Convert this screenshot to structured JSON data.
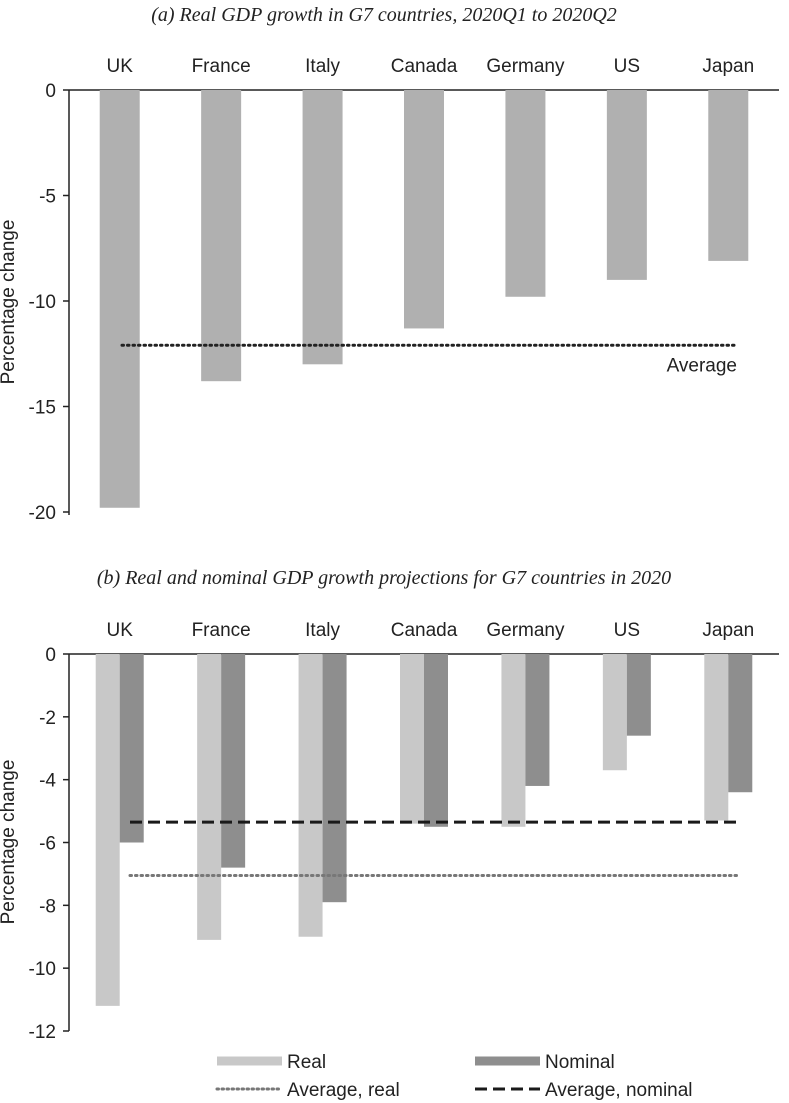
{
  "chart_data": [
    {
      "panel": "a",
      "type": "bar",
      "title": "(a) Real GDP growth in G7 countries, 2020Q1 to 2020Q2",
      "ylabel": "Percentage change",
      "ylim": [
        -20,
        0
      ],
      "yticks": [
        0,
        -5,
        -10,
        -15,
        -20
      ],
      "categories": [
        "UK",
        "France",
        "Italy",
        "Canada",
        "Germany",
        "US",
        "Japan"
      ],
      "series": [
        {
          "values": [
            -19.8,
            -13.8,
            -13.0,
            -11.3,
            -9.8,
            -9.0,
            -8.1
          ],
          "color": "#b0b0b0"
        }
      ],
      "reference_lines": [
        {
          "label": "Average",
          "value": -12.1,
          "style": "dotted",
          "color": "#222222"
        }
      ],
      "grid": false
    },
    {
      "panel": "b",
      "type": "bar",
      "title": "(b) Real and nominal GDP growth projections for G7 countries in 2020",
      "ylabel": "Percentage change",
      "ylim": [
        -12,
        0
      ],
      "yticks": [
        0,
        -2,
        -4,
        -6,
        -8,
        -10,
        -12
      ],
      "categories": [
        "UK",
        "France",
        "Italy",
        "Canada",
        "Germany",
        "US",
        "Japan"
      ],
      "series": [
        {
          "name": "Real",
          "values": [
            -11.2,
            -9.1,
            -9.0,
            -5.4,
            -5.5,
            -3.7,
            -5.3
          ],
          "color": "#c8c8c8"
        },
        {
          "name": "Nominal",
          "values": [
            -6.0,
            -6.8,
            -7.9,
            -5.5,
            -4.2,
            -2.6,
            -4.4
          ],
          "color": "#8e8e8e"
        }
      ],
      "reference_lines": [
        {
          "label": "Average, real",
          "value": -7.05,
          "style": "dotted",
          "color": "#777777"
        },
        {
          "label": "Average, nominal",
          "value": -5.35,
          "style": "dashed",
          "color": "#1a1a1a"
        }
      ],
      "legend": {
        "placement": "bottom",
        "items": [
          "Real",
          "Nominal",
          "Average, real",
          "Average, nominal"
        ]
      },
      "grid": false
    }
  ]
}
